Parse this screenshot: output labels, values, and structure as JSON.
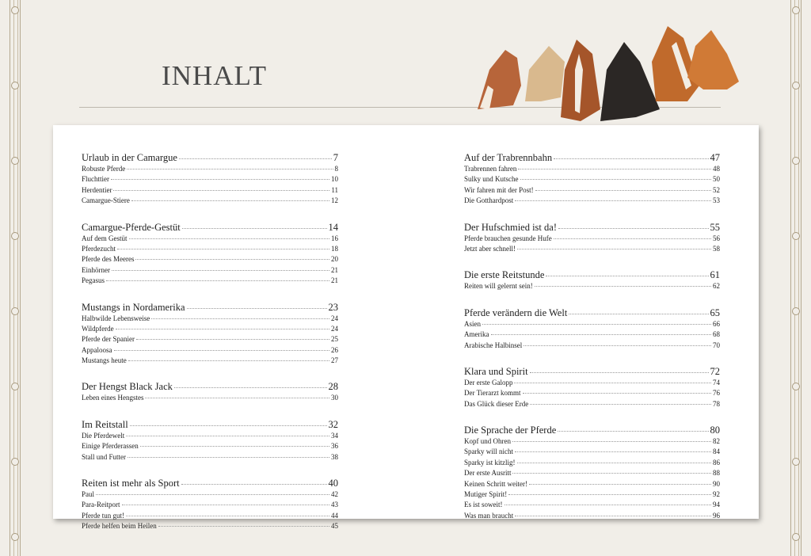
{
  "title": "INHALT",
  "columns": [
    [
      {
        "title": "Urlaub in der Camargue",
        "page": "7",
        "items": [
          [
            "Robuste Pferde",
            "8"
          ],
          [
            "Fluchttier",
            "10"
          ],
          [
            "Herdentier",
            "11"
          ],
          [
            "Camargue-Stiere",
            "12"
          ]
        ]
      },
      {
        "title": "Camargue-Pferde-Gestüt",
        "page": "14",
        "items": [
          [
            "Auf dem Gestüt",
            "16"
          ],
          [
            "Pferdezucht",
            "18"
          ],
          [
            "Pferde des Meeres",
            "20"
          ],
          [
            "Einhörner",
            "21"
          ],
          [
            "Pegasus",
            "21"
          ]
        ]
      },
      {
        "title": "Mustangs in Nordamerika",
        "page": "23",
        "items": [
          [
            "Halbwilde Lebensweise",
            "24"
          ],
          [
            "Wildpferde",
            "24"
          ],
          [
            "Pferde der Spanier",
            "25"
          ],
          [
            "Appaloosa",
            "26"
          ],
          [
            "Mustangs heute",
            "27"
          ]
        ]
      },
      {
        "title": "Der Hengst Black Jack",
        "page": "28",
        "items": [
          [
            "Leben eines Hengstes",
            "30"
          ]
        ]
      },
      {
        "title": "Im Reitstall",
        "page": "32",
        "items": [
          [
            "Die Pferdewelt",
            "34"
          ],
          [
            "Einige Pferderassen",
            "36"
          ],
          [
            "Stall und Futter",
            "38"
          ]
        ]
      },
      {
        "title": "Reiten ist mehr als Sport",
        "page": "40",
        "items": [
          [
            "Paul",
            "42"
          ],
          [
            "Para-Reitport",
            "43"
          ],
          [
            "Pferde tun gut!",
            "44"
          ],
          [
            "Pferde helfen beim Heilen",
            "45"
          ]
        ]
      }
    ],
    [
      {
        "title": "Auf der Trabrennbahn",
        "page": "47",
        "items": [
          [
            "Trabrennen fahren",
            "48"
          ],
          [
            "Sulky und Kutsche",
            "50"
          ],
          [
            "Wir fahren mit der Post!",
            "52"
          ],
          [
            "Die Gotthardpost",
            "53"
          ]
        ]
      },
      {
        "title": "Der Hufschmied ist da!",
        "page": "55",
        "items": [
          [
            "Pferde brauchen gesunde Hufe",
            "56"
          ],
          [
            "Jetzt aber schnell!",
            "58"
          ]
        ]
      },
      {
        "title": "Die erste Reitstunde",
        "page": "61",
        "items": [
          [
            "Reiten will gelernt sein!",
            "62"
          ]
        ]
      },
      {
        "title": "Pferde verändern die Welt",
        "page": "65",
        "items": [
          [
            "Asien",
            "66"
          ],
          [
            "Amerika",
            "68"
          ],
          [
            "Arabische Halbinsel",
            "70"
          ]
        ]
      },
      {
        "title": "Klara und Spirit",
        "page": "72",
        "items": [
          [
            "Der erste Galopp",
            "74"
          ],
          [
            "Der Tierarzt kommt",
            "76"
          ],
          [
            "Das Glück dieser Erde",
            "78"
          ]
        ]
      },
      {
        "title": "Die Sprache der Pferde",
        "page": "80",
        "items": [
          [
            "Kopf und Ohren",
            "82"
          ],
          [
            "Sparky will nicht",
            "84"
          ],
          [
            "Sparky ist kitzlig!",
            "86"
          ],
          [
            "Der erste Ausritt",
            "88"
          ],
          [
            "Keinen Schritt weiter!",
            "90"
          ],
          [
            "Mutiger Spirit!",
            "92"
          ],
          [
            "Es ist soweit!",
            "94"
          ],
          [
            "Was man braucht",
            "96"
          ]
        ]
      }
    ]
  ],
  "illustration": "horse-heads"
}
